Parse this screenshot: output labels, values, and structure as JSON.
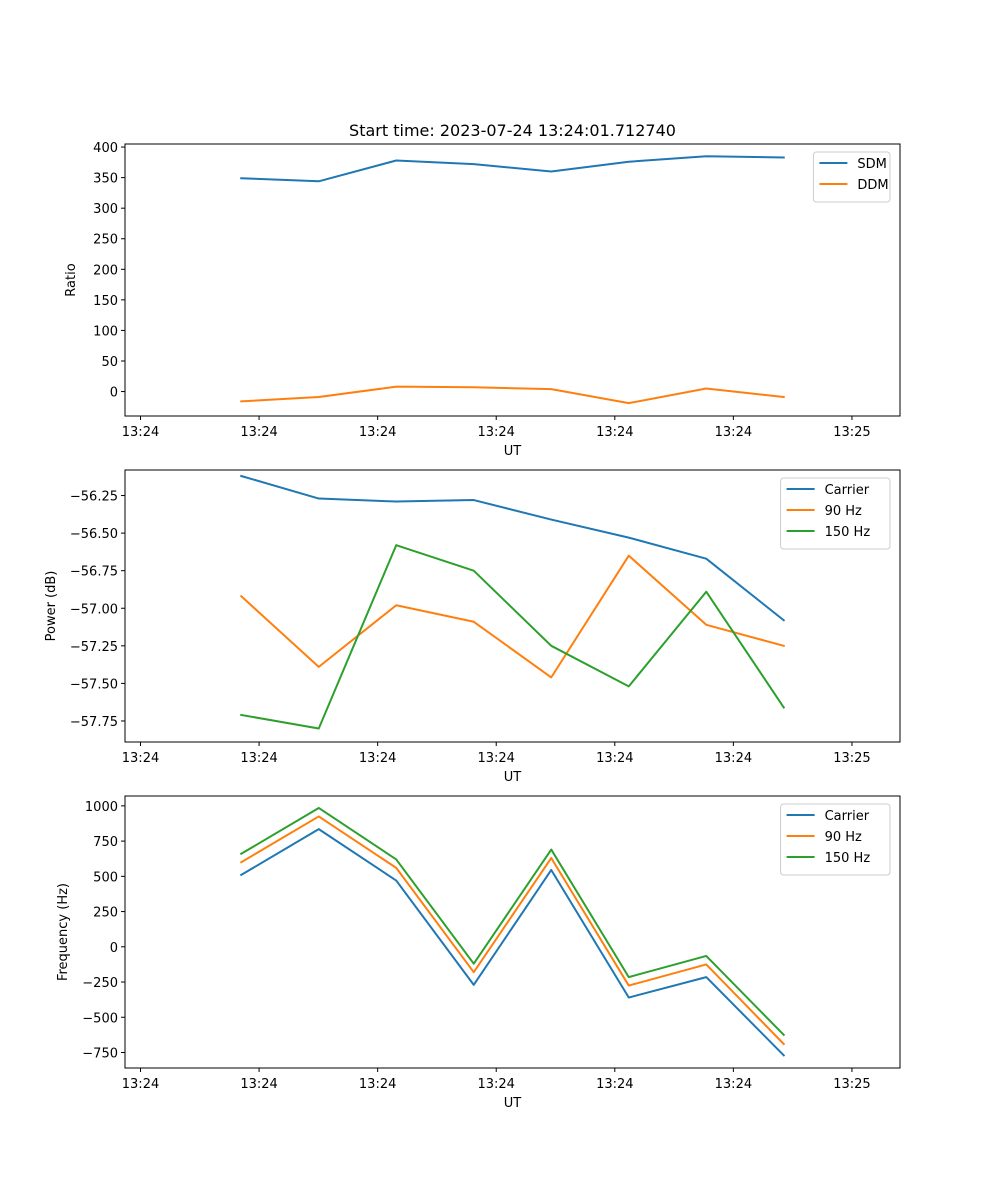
{
  "figure": {
    "suptitle": "Start time: 2023-07-24 13:24:01.712740"
  },
  "chart_data": [
    {
      "type": "line",
      "title": "Start time: 2023-07-24 13:24:01.712740",
      "xlabel": "UT",
      "ylabel": "Ratio",
      "x_tick_labels": [
        "13:24",
        "13:24",
        "13:24",
        "13:24",
        "13:24",
        "13:24",
        "13:25"
      ],
      "xlim": [
        -0.5,
        9.5
      ],
      "ylim": [
        -40,
        405
      ],
      "y_ticks": [
        0,
        50,
        100,
        150,
        200,
        250,
        300,
        350,
        400
      ],
      "legend_position": "top-right",
      "x": [
        1,
        2,
        3,
        4,
        5,
        6,
        7,
        8
      ],
      "series": [
        {
          "name": "SDM",
          "color": "#1f77b4",
          "values": [
            349,
            344,
            378,
            372,
            360,
            376,
            385,
            383
          ]
        },
        {
          "name": "DDM",
          "color": "#ff7f0e",
          "values": [
            -16,
            -9,
            8,
            7,
            4,
            -19,
            5,
            -9
          ]
        }
      ]
    },
    {
      "type": "line",
      "title": "",
      "xlabel": "UT",
      "ylabel": "Power (dB)",
      "x_tick_labels": [
        "13:24",
        "13:24",
        "13:24",
        "13:24",
        "13:24",
        "13:24",
        "13:25"
      ],
      "xlim": [
        -0.5,
        9.5
      ],
      "ylim": [
        -57.89,
        -56.08
      ],
      "y_ticks": [
        -57.75,
        -57.5,
        -57.25,
        -57.0,
        -56.75,
        -56.5,
        -56.25
      ],
      "y_tick_labels": [
        "−57.75",
        "−57.50",
        "−57.25",
        "−57.00",
        "−56.75",
        "−56.50",
        "−56.25"
      ],
      "legend_position": "top-right",
      "x": [
        1,
        2,
        3,
        4,
        5,
        6,
        7,
        8
      ],
      "series": [
        {
          "name": "Carrier",
          "color": "#1f77b4",
          "values": [
            -56.12,
            -56.27,
            -56.29,
            -56.28,
            -56.41,
            -56.53,
            -56.67,
            -57.08
          ]
        },
        {
          "name": "90 Hz",
          "color": "#ff7f0e",
          "values": [
            -56.92,
            -57.39,
            -56.98,
            -57.09,
            -57.46,
            -56.65,
            -57.11,
            -57.25
          ]
        },
        {
          "name": "150 Hz",
          "color": "#2ca02c",
          "values": [
            -57.71,
            -57.8,
            -56.58,
            -56.75,
            -57.25,
            -57.52,
            -56.89,
            -57.66
          ]
        }
      ]
    },
    {
      "type": "line",
      "title": "",
      "xlabel": "UT",
      "ylabel": "Frequency (Hz)",
      "x_tick_labels": [
        "13:24",
        "13:24",
        "13:24",
        "13:24",
        "13:24",
        "13:24",
        "13:25"
      ],
      "xlim": [
        -0.5,
        9.5
      ],
      "ylim": [
        -860,
        1070
      ],
      "y_ticks": [
        -750,
        -500,
        -250,
        0,
        250,
        500,
        750,
        1000
      ],
      "y_tick_labels": [
        "−750",
        "−500",
        "−250",
        "0",
        "250",
        "500",
        "750",
        "1000"
      ],
      "legend_position": "top-right",
      "x": [
        1,
        2,
        3,
        4,
        5,
        6,
        7,
        8
      ],
      "series": [
        {
          "name": "Carrier",
          "color": "#1f77b4",
          "values": [
            510,
            835,
            470,
            -270,
            545,
            -360,
            -215,
            -770
          ]
        },
        {
          "name": "90 Hz",
          "color": "#ff7f0e",
          "values": [
            600,
            925,
            560,
            -180,
            630,
            -275,
            -125,
            -690
          ]
        },
        {
          "name": "150 Hz",
          "color": "#2ca02c",
          "values": [
            660,
            985,
            620,
            -120,
            690,
            -215,
            -65,
            -625
          ]
        }
      ]
    }
  ]
}
